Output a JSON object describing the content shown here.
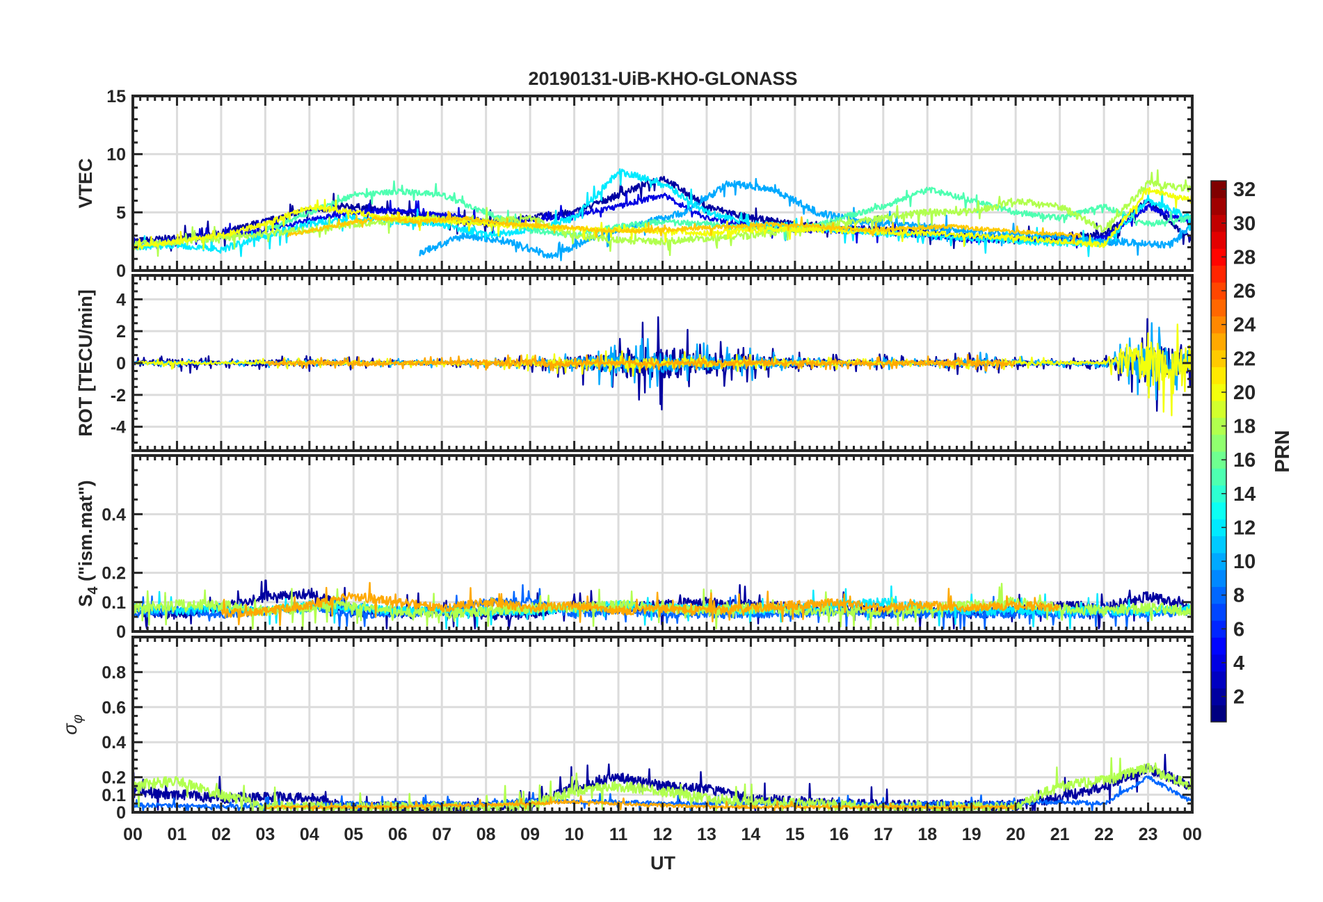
{
  "chart_data": {
    "type": "line",
    "title": "20190131-UiB-KHO-GLONASS",
    "xlabel": "UT",
    "x_range_hours": [
      0,
      24
    ],
    "x_tick_labels": [
      "00",
      "01",
      "02",
      "03",
      "04",
      "05",
      "06",
      "07",
      "08",
      "09",
      "10",
      "11",
      "12",
      "13",
      "14",
      "15",
      "16",
      "17",
      "18",
      "19",
      "20",
      "21",
      "22",
      "23",
      "00"
    ],
    "grid": true,
    "colorbar": {
      "label": "PRN",
      "range": [
        1,
        32
      ],
      "ticks": [
        2,
        4,
        6,
        8,
        10,
        12,
        14,
        16,
        18,
        20,
        22,
        24,
        26,
        28,
        30,
        32
      ],
      "colormap": "jet",
      "placement": "right"
    },
    "panels": [
      {
        "ylabel": "VTEC",
        "ylim": [
          0,
          15
        ],
        "yticks": [
          0,
          5,
          10,
          15
        ],
        "ytick_labels": [
          "0",
          "5",
          "10",
          "15"
        ],
        "series": [
          {
            "prn": 2,
            "start": 0,
            "values": [
              2.5,
              2.8,
              3.2,
              4.2,
              5.2,
              5.5,
              5.0,
              4.6,
              4.0,
              4.5,
              5.0,
              6.5,
              8.0,
              5.5,
              4.5,
              4.0,
              3.6,
              3.5,
              3.3,
              2.8,
              2.6,
              3.0,
              3.0,
              6.0,
              2.5
            ],
            "noise": 0.5
          },
          {
            "prn": 4,
            "start": 0,
            "values": [
              2.3,
              2.6,
              3.0,
              3.5,
              4.3,
              5.0,
              5.2,
              4.8,
              4.2,
              4.3,
              4.8,
              5.5,
              6.5,
              4.5,
              3.8,
              3.5,
              3.4,
              3.3,
              3.0,
              2.6,
              2.8,
              2.5,
              2.8,
              5.5,
              4.0
            ],
            "noise": 0.4
          },
          {
            "prn": 10,
            "start": 6.5,
            "values": [
              1.5,
              3.0,
              2.5,
              1.2,
              3.0,
              4.0,
              5.0,
              7.5,
              7.0,
              5.0,
              4.2,
              4.0,
              3.5,
              3.2,
              3.0,
              2.6,
              2.4,
              2.2,
              5.5,
              4.5
            ],
            "noise": 0.5
          },
          {
            "prn": 12,
            "start": 0,
            "values": [
              2.0,
              2.2,
              1.8,
              3.0,
              4.0,
              4.5,
              4.2,
              4.0,
              3.0,
              3.5,
              4.5,
              8.5,
              7.5,
              5.0,
              4.0,
              3.8,
              3.5,
              3.2,
              3.0,
              2.8,
              2.5,
              2.4,
              2.3,
              6.0,
              4.5
            ],
            "noise": 0.5
          },
          {
            "prn": 15,
            "start": 3,
            "values": [
              3.5,
              5.0,
              6.5,
              6.8,
              6.5,
              5.0,
              3.5,
              3.0,
              3.8,
              4.2,
              4.0,
              3.6,
              3.5,
              4.5,
              5.5,
              7.0,
              6.0,
              5.0,
              4.5,
              5.5,
              4.0,
              4.5,
              6.0
            ],
            "noise": 0.4
          },
          {
            "prn": 18,
            "start": 0,
            "values": [
              2.2,
              2.5,
              2.8,
              3.2,
              3.5,
              4.0,
              4.3,
              4.5,
              4.2,
              4.5,
              3.0,
              2.6,
              2.5,
              2.8,
              3.0,
              3.5,
              4.0,
              4.5,
              5.0,
              5.0,
              6.0,
              5.5,
              3.5,
              7.5,
              7.0
            ],
            "noise": 0.5
          },
          {
            "prn": 20,
            "start": 0,
            "values": [
              2.0,
              2.5,
              3.0,
              4.0,
              5.5,
              5.0,
              4.5,
              4.3,
              4.0,
              3.8,
              3.6,
              3.5,
              3.4,
              3.2,
              3.5,
              3.6,
              3.4,
              3.3,
              3.2,
              3.0,
              2.8,
              2.5,
              2.2,
              7.0,
              6.0
            ],
            "noise": 0.4
          },
          {
            "prn": 22,
            "start": 3.5,
            "values": [
              3.0,
              3.8,
              4.5,
              4.2,
              4.5,
              4.0,
              3.8,
              3.5,
              3.4,
              3.6,
              3.8,
              4.0,
              3.8,
              3.5,
              3.6,
              3.8,
              3.5,
              3.2,
              3.0
            ],
            "noise": 0.3
          }
        ]
      },
      {
        "ylabel": "ROT [TECU/min]",
        "ylim": [
          -5.5,
          5.5
        ],
        "yticks": [
          -4,
          -2,
          0,
          2,
          4
        ],
        "ytick_labels": [
          "-4",
          "-2",
          "0",
          "2",
          "4"
        ],
        "series": [
          {
            "prn": 2,
            "start": 0,
            "values": [
              0,
              0,
              0,
              0,
              0,
              0,
              0,
              0,
              0,
              0,
              0,
              0,
              0,
              0,
              0,
              0,
              0,
              0,
              0,
              0,
              0,
              0,
              0,
              0,
              0
            ],
            "amp": [
              0.2,
              0.6,
              0.2,
              0.4,
              0.4,
              0.3,
              0.2,
              0.2,
              0.2,
              0.4,
              0.8,
              1.8,
              2.2,
              1.4,
              1.0,
              0.6,
              0.4,
              0.4,
              0.3,
              0.6,
              0.4,
              0.3,
              0.3,
              2.5,
              1.2
            ]
          },
          {
            "prn": 10,
            "start": 0,
            "values": [
              0,
              0,
              0,
              0,
              0,
              0,
              0,
              0,
              0,
              0,
              0,
              0,
              0,
              0,
              0,
              0,
              0,
              0,
              0,
              0,
              0,
              0,
              0,
              0,
              0
            ],
            "amp": [
              0.1,
              0.2,
              0.1,
              0.2,
              0.2,
              0.2,
              0.2,
              0.2,
              0.2,
              0.3,
              0.6,
              1.3,
              1.2,
              0.9,
              0.8,
              0.4,
              0.3,
              0.3,
              0.2,
              0.5,
              0.4,
              0.2,
              0.2,
              2.0,
              1.2
            ]
          },
          {
            "prn": 20,
            "start": 0,
            "values": [
              0,
              0,
              0,
              0,
              0,
              0,
              0,
              0,
              0,
              0,
              0,
              0,
              0,
              0,
              0,
              0,
              0,
              0,
              0,
              0,
              0,
              0,
              0,
              0,
              0
            ],
            "amp": [
              0.1,
              0.3,
              0.1,
              0.2,
              0.3,
              0.2,
              0.2,
              0.2,
              0.2,
              0.4,
              0.5,
              0.6,
              0.6,
              0.5,
              0.4,
              0.3,
              0.3,
              0.2,
              0.2,
              0.3,
              0.3,
              0.2,
              0.2,
              3.0,
              1.8
            ]
          },
          {
            "prn": 23,
            "start": 3,
            "values": [
              0,
              0,
              0,
              0,
              0,
              0,
              0,
              0,
              0,
              0,
              0,
              0,
              0,
              0,
              0,
              0,
              0,
              0
            ],
            "amp": [
              0.2,
              0.3,
              0.3,
              0.3,
              0.3,
              0.4,
              0.5,
              0.4,
              0.3,
              0.3,
              0.3,
              0.3,
              0.3,
              0.3,
              0.3,
              0.3,
              0.4,
              0.3
            ]
          }
        ]
      },
      {
        "ylabel": "S4 (\"ism.mat\")",
        "ylabel_main": "S",
        "ylabel_sub": "4",
        "ylabel_rest": " (\"ism.mat\")",
        "ylim": [
          0,
          0.6
        ],
        "yticks": [
          0,
          0.1,
          0.2,
          0.4
        ],
        "ytick_labels": [
          "0",
          "0.1",
          "0.2",
          "0.4"
        ],
        "series": [
          {
            "prn": 2,
            "start": 0,
            "values": [
              0.07,
              0.06,
              0.08,
              0.12,
              0.13,
              0.07,
              0.06,
              0.07,
              0.06,
              0.06,
              0.09,
              0.08,
              0.09,
              0.1,
              0.09,
              0.08,
              0.08,
              0.07,
              0.07,
              0.06,
              0.07,
              0.09,
              0.08,
              0.12,
              0.08
            ],
            "noise": 0.03
          },
          {
            "prn": 8,
            "start": 0,
            "values": [
              0.06,
              0.07,
              0.06,
              0.07,
              0.08,
              0.06,
              0.06,
              0.07,
              0.1,
              0.1,
              0.06,
              0.07,
              0.06,
              0.06,
              0.06,
              0.06,
              0.07,
              0.06,
              0.06,
              0.06,
              0.06,
              0.06,
              0.06,
              0.06,
              0.07
            ],
            "noise": 0.025
          },
          {
            "prn": 12,
            "start": 0,
            "values": [
              0.08,
              0.07,
              0.08,
              0.07,
              0.09,
              0.08,
              0.07,
              0.07,
              0.07,
              0.07,
              0.08,
              0.09,
              0.08,
              0.08,
              0.07,
              0.08,
              0.09,
              0.1,
              0.08,
              0.07,
              0.07,
              0.07,
              0.07,
              0.07,
              0.08
            ],
            "noise": 0.025
          },
          {
            "prn": 18,
            "start": 0,
            "values": [
              0.08,
              0.09,
              0.09,
              0.07,
              0.08,
              0.09,
              0.07,
              0.06,
              0.07,
              0.08,
              0.08,
              0.09,
              0.08,
              0.07,
              0.08,
              0.07,
              0.07,
              0.07,
              0.08,
              0.09,
              0.1,
              0.08,
              0.07,
              0.08,
              0.07
            ],
            "noise": 0.03
          },
          {
            "prn": 23,
            "start": 2,
            "values": [
              0.06,
              0.07,
              0.09,
              0.12,
              0.1,
              0.08,
              0.1,
              0.08,
              0.09,
              0.07,
              0.08,
              0.07,
              0.08,
              0.09,
              0.1,
              0.08,
              0.09,
              0.08,
              0.09,
              0.08
            ],
            "noise": 0.025
          }
        ]
      },
      {
        "ylabel": "σφ",
        "ylabel_main": "σ",
        "ylabel_sub": "φ",
        "ylim": [
          0,
          1.0
        ],
        "yticks": [
          0,
          0.1,
          0.2,
          0.4,
          0.6,
          0.8
        ],
        "ytick_labels": [
          "0",
          "0.1",
          "0.2",
          "0.4",
          "0.6",
          "0.8"
        ],
        "series": [
          {
            "prn": 2,
            "start": 0,
            "values": [
              0.12,
              0.1,
              0.08,
              0.09,
              0.08,
              0.03,
              0.03,
              0.03,
              0.03,
              0.04,
              0.15,
              0.2,
              0.15,
              0.13,
              0.08,
              0.06,
              0.05,
              0.04,
              0.04,
              0.04,
              0.04,
              0.08,
              0.15,
              0.25,
              0.15
            ],
            "noise": 0.05
          },
          {
            "prn": 8,
            "start": 0,
            "values": [
              0.04,
              0.04,
              0.03,
              0.04,
              0.04,
              0.05,
              0.05,
              0.05,
              0.05,
              0.07,
              0.06,
              0.06,
              0.05,
              0.05,
              0.05,
              0.05,
              0.05,
              0.04,
              0.05,
              0.05,
              0.05,
              0.06,
              0.05,
              0.2,
              0.06
            ],
            "noise": 0.02
          },
          {
            "prn": 18,
            "start": 0,
            "values": [
              0.15,
              0.18,
              0.1,
              0.03,
              0.03,
              0.03,
              0.03,
              0.03,
              0.03,
              0.04,
              0.12,
              0.15,
              0.12,
              0.08,
              0.06,
              0.05,
              0.04,
              0.03,
              0.03,
              0.03,
              0.03,
              0.15,
              0.18,
              0.25,
              0.15
            ],
            "noise": 0.05
          },
          {
            "prn": 23,
            "start": 3,
            "values": [
              0.03,
              0.03,
              0.03,
              0.03,
              0.04,
              0.04,
              0.05,
              0.06,
              0.05,
              0.04,
              0.03,
              0.03,
              0.03,
              0.03,
              0.03,
              0.03,
              0.03,
              0.03
            ],
            "noise": 0.015
          }
        ]
      }
    ]
  }
}
